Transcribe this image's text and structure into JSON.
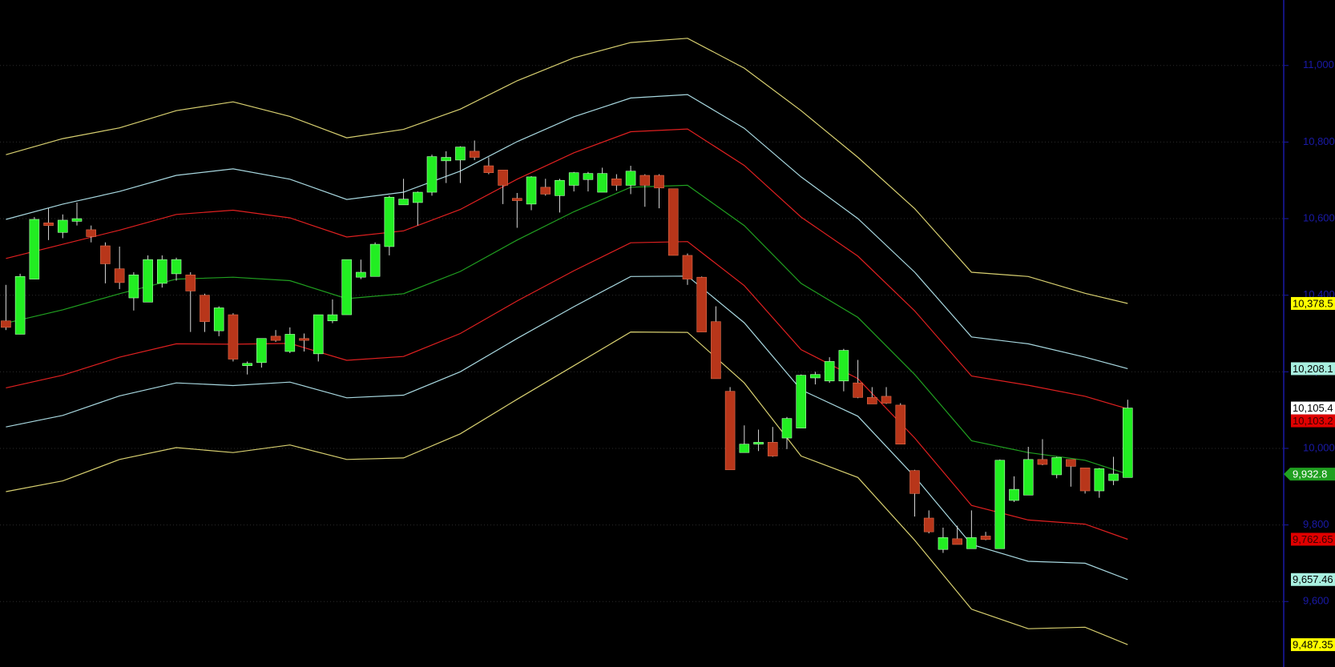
{
  "chart_data": {
    "type": "candlestick",
    "ylim": [
      9429,
      11171
    ],
    "yticks": [
      {
        "value": 9600,
        "label": "9,600"
      },
      {
        "value": 9800,
        "label": "9,800"
      },
      {
        "value": 10000,
        "label": "10,000"
      },
      {
        "value": 10200,
        "label": "10,200"
      },
      {
        "value": 10400,
        "label": "10,400"
      },
      {
        "value": 10600,
        "label": "10,600"
      },
      {
        "value": 10800,
        "label": "10,800"
      },
      {
        "value": 11000,
        "label": "11,000"
      }
    ],
    "grid": true,
    "axis_color": "#1a1aa8",
    "candles": {
      "up_color": "#22ee22",
      "down_color": "#b8361a",
      "wick_color": "#d8d8d8",
      "close_label": "10,105.4",
      "close_tag_color": "#ffffff",
      "open": [
        10333,
        10298,
        10442,
        10589,
        10564,
        10593,
        10571,
        10529,
        10469,
        10393,
        10382,
        10431,
        10456,
        10453,
        10400,
        10307,
        10349,
        10216,
        10224,
        10293,
        10253,
        10287,
        10247,
        10333,
        10349,
        10447,
        10449,
        10527,
        10636,
        10642,
        10669,
        10751,
        10753,
        10776,
        10738,
        10727,
        10653,
        10638,
        10682,
        10660,
        10687,
        10702,
        10669,
        10704,
        10687,
        10713,
        10713,
        10678,
        10504,
        10447,
        10331,
        10149,
        9989,
        10011,
        10016,
        10027,
        10053,
        10184,
        10176,
        10176,
        10171,
        10133,
        10136,
        10113,
        9942,
        9818,
        9736,
        9764,
        9738,
        9771,
        9738,
        9864,
        9878,
        9971,
        9931,
        9971,
        9949,
        9889,
        9916,
        9924
      ],
      "high": [
        10427,
        10456,
        10604,
        10627,
        10611,
        10642,
        10582,
        10538,
        10527,
        10460,
        10504,
        10504,
        10498,
        10460,
        10404,
        10371,
        10353,
        10227,
        10287,
        10309,
        10316,
        10300,
        10349,
        10389,
        10493,
        10493,
        10538,
        10660,
        10704,
        10671,
        10767,
        10776,
        10789,
        10804,
        10760,
        10727,
        10667,
        10711,
        10704,
        10704,
        10722,
        10722,
        10733,
        10716,
        10738,
        10716,
        10716,
        10678,
        10509,
        10449,
        10371,
        10160,
        10060,
        10049,
        10056,
        10082,
        10193,
        10200,
        10238,
        10260,
        10231,
        10160,
        10160,
        10118,
        9944,
        9838,
        9793,
        9798,
        9838,
        9782,
        9971,
        9927,
        10004,
        10024,
        9978,
        9971,
        9949,
        9949,
        9978,
        10127
      ],
      "low": [
        10309,
        10298,
        10442,
        10544,
        10549,
        10582,
        10538,
        10431,
        10416,
        10360,
        10382,
        10420,
        10438,
        10304,
        10304,
        10293,
        10227,
        10193,
        10211,
        10278,
        10249,
        10253,
        10227,
        10327,
        10349,
        10442,
        10449,
        10504,
        10636,
        10582,
        10660,
        10693,
        10693,
        10753,
        10716,
        10638,
        10576,
        10622,
        10660,
        10616,
        10671,
        10671,
        10669,
        10673,
        10664,
        10631,
        10627,
        10504,
        10427,
        10304,
        10182,
        9944,
        9989,
        9993,
        9978,
        9998,
        10053,
        10167,
        10171,
        10149,
        10131,
        10116,
        10116,
        10011,
        9822,
        9778,
        9727,
        9749,
        9738,
        9760,
        9738,
        9860,
        9878,
        9956,
        9922,
        9900,
        9882,
        9871,
        9904,
        9924
      ],
      "close": [
        10316,
        10449,
        10598,
        10582,
        10596,
        10600,
        10553,
        10482,
        10433,
        10453,
        10493,
        10493,
        10493,
        10411,
        10331,
        10367,
        10233,
        10222,
        10287,
        10282,
        10298,
        10282,
        10349,
        10349,
        10493,
        10460,
        10533,
        10656,
        10651,
        10669,
        10762,
        10760,
        10787,
        10760,
        10720,
        10687,
        10647,
        10709,
        10664,
        10700,
        10720,
        10718,
        10718,
        10687,
        10724,
        10687,
        10680,
        10504,
        10442,
        10304,
        10182,
        9944,
        10011,
        10016,
        9980,
        10078,
        10191,
        10193,
        10227,
        10256,
        10133,
        10116,
        10118,
        10011,
        9882,
        9782,
        9767,
        9749,
        9767,
        9762,
        9969,
        9893,
        9971,
        9958,
        9976,
        9953,
        9889,
        9947,
        9933,
        10105.4
      ]
    },
    "line_x": [
      0,
      4,
      8,
      12,
      16,
      20,
      24,
      28,
      32,
      36,
      40,
      44,
      48,
      52,
      56,
      60,
      64,
      68,
      72,
      76,
      79
    ],
    "lines": [
      {
        "color": "#d8d070",
        "tag_color": "#ffff00",
        "label_color": "#000000",
        "label": "10,378.5",
        "values": [
          10767,
          10809,
          10837,
          10882,
          10905,
          10867,
          10811,
          10833,
          10886,
          10960,
          11020,
          11060,
          11071,
          10993,
          10882,
          10760,
          10626,
          10460,
          10449,
          10405,
          10378.5
        ]
      },
      {
        "color": "#a8d8e0",
        "tag_color": "#a8f0e0",
        "label_color": "#000000",
        "label": "10,208.1",
        "values": [
          10598,
          10638,
          10671,
          10713,
          10730,
          10703,
          10650,
          10669,
          10724,
          10801,
          10866,
          10915,
          10924,
          10836,
          10709,
          10600,
          10460,
          10291,
          10273,
          10238,
          10208.1
        ]
      },
      {
        "color": "#e02020",
        "tag_color": "#e00000",
        "label_color": "#3a0000",
        "label": "10,103.2",
        "values": [
          10496,
          10533,
          10570,
          10611,
          10622,
          10602,
          10552,
          10568,
          10624,
          10703,
          10772,
          10827,
          10834,
          10739,
          10604,
          10502,
          10359,
          10189,
          10165,
          10136,
          10103.2
        ]
      },
      {
        "color": "#20a020",
        "tag_color": "#20a020",
        "label_color": "#ffffff",
        "label": "9,932.8",
        "values": [
          10327,
          10362,
          10404,
          10442,
          10447,
          10438,
          10391,
          10404,
          10462,
          10544,
          10618,
          10682,
          10687,
          10582,
          10431,
          10342,
          10193,
          10020,
          9989,
          9969,
          9932.8
        ]
      },
      {
        "color": "#e02020",
        "tag_color": "#e00000",
        "label_color": "#3a0000",
        "label": "9,762.65",
        "values": [
          10158,
          10191,
          10238,
          10273,
          10272,
          10274,
          10230,
          10240,
          10300,
          10385,
          10464,
          10537,
          10540,
          10425,
          10258,
          10182,
          10027,
          9851,
          9813,
          9802,
          9762.65
        ]
      },
      {
        "color": "#a8d8e0",
        "tag_color": "#a8f0e0",
        "label_color": "#000000",
        "label": "9,657.46",
        "values": [
          10056,
          10086,
          10137,
          10171,
          10164,
          10173,
          10132,
          10139,
          10200,
          10287,
          10370,
          10449,
          10450,
          10328,
          10153,
          10084,
          9926,
          9749,
          9705,
          9700,
          9657.46
        ]
      },
      {
        "color": "#d8d070",
        "tag_color": "#ffff00",
        "label_color": "#000000",
        "label": "9,487.35",
        "values": [
          9887,
          9915,
          9971,
          10002,
          9989,
          10009,
          9971,
          9975,
          10038,
          10128,
          10216,
          10304,
          10303,
          10171,
          9980,
          9924,
          9760,
          9580,
          9529,
          9533,
          9487.35
        ]
      }
    ]
  }
}
